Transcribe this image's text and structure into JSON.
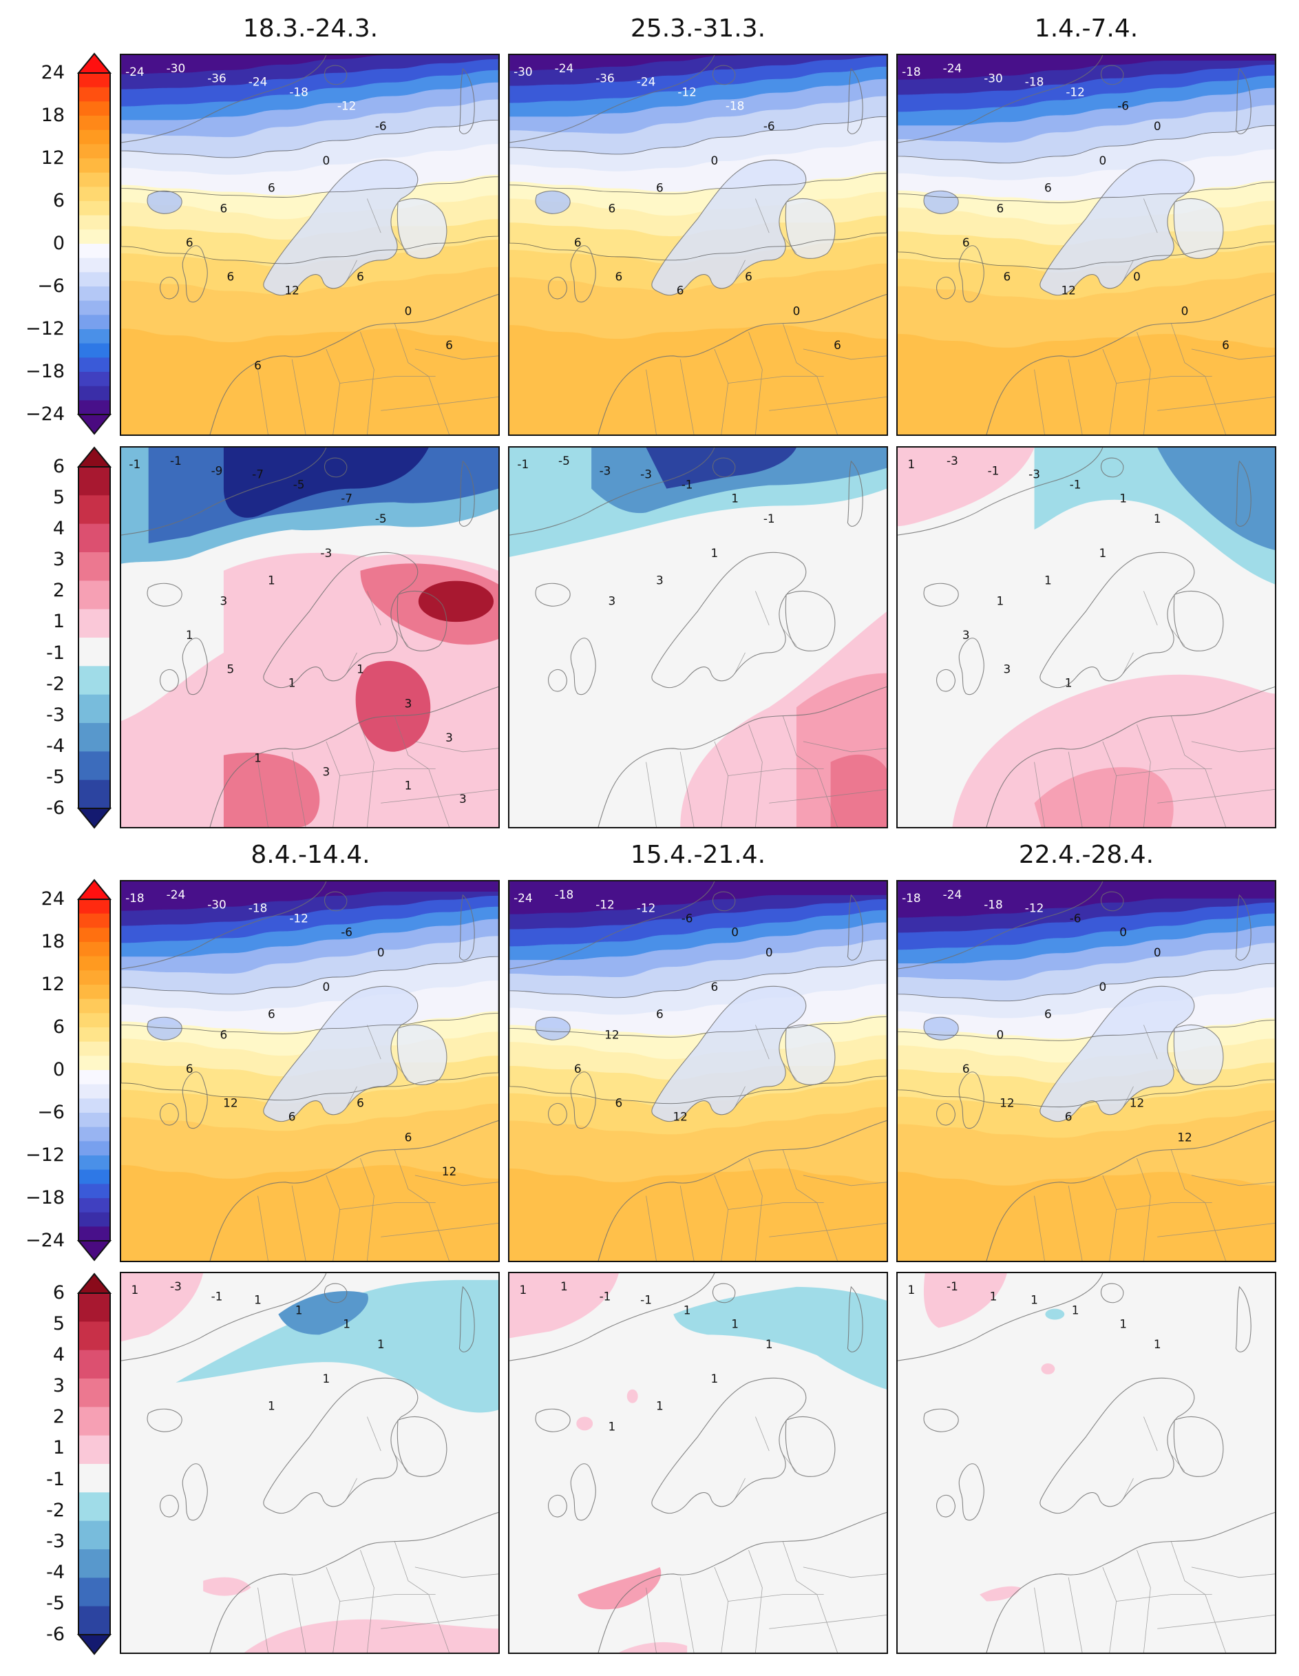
{
  "periods_top": [
    "18.3.-24.3.",
    "25.3.-31.3.",
    "1.4.-7.4."
  ],
  "periods_bottom": [
    "8.4.-14.4.",
    "15.4.-21.4.",
    "22.4.-28.4."
  ],
  "temp_colorbar": {
    "ticks": [
      "24",
      "18",
      "12",
      "6",
      "0",
      "−6",
      "−12",
      "−18",
      "−24"
    ],
    "colors": [
      "#f8f8ff",
      "#e8ecfc",
      "#d0dcfa",
      "#b4c8f6",
      "#98b4f2",
      "#78a0ee",
      "#4a90e8",
      "#2e78e6",
      "#3a5ad8",
      "#4040c0",
      "#3a2ea8",
      "#48108a",
      "#fff8c8",
      "#fff0b0",
      "#ffe48a",
      "#ffd870",
      "#ffca5a",
      "#ffb840",
      "#ffa830",
      "#ff9a20",
      "#ff8818",
      "#ff7010",
      "#ff5010",
      "#ff2a10"
    ]
  },
  "anomaly_colorbar": {
    "ticks": [
      "6",
      "5",
      "4",
      "3",
      "2",
      "1",
      "-1",
      "-2",
      "-3",
      "-4",
      "-5",
      "-6"
    ],
    "colors": [
      "#a81830",
      "#c83048",
      "#dc5070",
      "#ec7890",
      "#f6a0b4",
      "#fac8d8",
      "#f5f5f5",
      "#a0dce8",
      "#78bcdc",
      "#5898cc",
      "#3c6cbc",
      "#2c44a0",
      "#1c2888"
    ]
  },
  "temp_maps": [
    {
      "labels": [
        "-24",
        "-30",
        "-36",
        "-24",
        "-18",
        "-12",
        "-6",
        "0",
        "6",
        "6",
        "6",
        "6",
        "12",
        "6",
        "0",
        "6",
        "6"
      ]
    },
    {
      "labels": [
        "-30",
        "-24",
        "-36",
        "-24",
        "-12",
        "-18",
        "-6",
        "0",
        "6",
        "6",
        "6",
        "6",
        "6",
        "6",
        "0",
        "6"
      ]
    },
    {
      "labels": [
        "-18",
        "-24",
        "-30",
        "-18",
        "-12",
        "-6",
        "0",
        "0",
        "6",
        "6",
        "6",
        "6",
        "12",
        "0",
        "0",
        "6"
      ]
    },
    {
      "labels": [
        "-18",
        "-24",
        "-30",
        "-18",
        "-12",
        "-6",
        "0",
        "0",
        "6",
        "6",
        "6",
        "12",
        "6",
        "6",
        "6",
        "12"
      ]
    },
    {
      "labels": [
        "-24",
        "-18",
        "-12",
        "-12",
        "-6",
        "0",
        "0",
        "6",
        "6",
        "12",
        "6",
        "6",
        "12"
      ]
    },
    {
      "labels": [
        "-18",
        "-24",
        "-18",
        "-12",
        "-6",
        "0",
        "0",
        "0",
        "6",
        "0",
        "6",
        "12",
        "6",
        "12",
        "12"
      ]
    }
  ],
  "anomaly_maps": [
    {
      "labels": [
        "-1",
        "-1",
        "-9",
        "-7",
        "-5",
        "-7",
        "-5",
        "-3",
        "1",
        "3",
        "1",
        "5",
        "1",
        "1",
        "3",
        "3",
        "1",
        "3",
        "1",
        "3"
      ]
    },
    {
      "labels": [
        "-1",
        "-5",
        "-3",
        "-3",
        "-1",
        "1",
        "-1",
        "1",
        "3",
        "3"
      ]
    },
    {
      "labels": [
        "1",
        "-3",
        "-1",
        "-3",
        "-1",
        "1",
        "1",
        "1",
        "1",
        "1",
        "3",
        "3",
        "1"
      ]
    },
    {
      "labels": [
        "1",
        "-3",
        "-1",
        "1",
        "1",
        "1",
        "1",
        "1",
        "1"
      ]
    },
    {
      "labels": [
        "1",
        "1",
        "-1",
        "-1",
        "1",
        "1",
        "1",
        "1",
        "1",
        "1"
      ]
    },
    {
      "labels": [
        "1",
        "-1",
        "1",
        "1",
        "1",
        "1",
        "1"
      ]
    }
  ]
}
